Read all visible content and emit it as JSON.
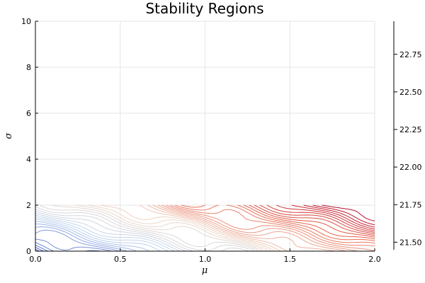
{
  "chart_data": {
    "type": "contour",
    "title": "Stability Regions",
    "xlabel": "μ",
    "ylabel": "σ",
    "xlim": [
      0,
      2
    ],
    "ylim": [
      0,
      10
    ],
    "x_ticks": [
      0.0,
      0.5,
      1.0,
      1.5,
      2.0
    ],
    "x_tick_labels": [
      "0.0",
      "0.5",
      "1.0",
      "1.5",
      "2.0"
    ],
    "y_ticks": [
      0,
      2,
      4,
      6,
      8,
      10
    ],
    "y_tick_labels": [
      "0",
      "2",
      "4",
      "6",
      "8",
      "10"
    ],
    "grid": true,
    "legend": "none",
    "colorbar": {
      "min": 21.45,
      "max": 22.97,
      "ticks": [
        21.5,
        21.75,
        22.0,
        22.25,
        22.5,
        22.75
      ],
      "tick_labels": [
        "21.50",
        "21.75",
        "22.00",
        "22.25",
        "22.50",
        "22.75"
      ]
    },
    "data_region": {
      "x": [
        0,
        2
      ],
      "y": [
        0,
        2
      ]
    },
    "colormap": [
      "#3b4cc0",
      "#bcd4f0",
      "#f0d8c8",
      "#e8654a",
      "#b40426"
    ]
  }
}
